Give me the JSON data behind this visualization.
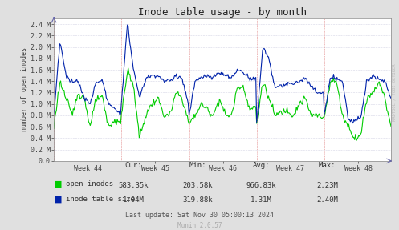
{
  "title": "Inode table usage - by month",
  "ylabel": "number of open inodes",
  "bg_color": "#e0e0e0",
  "plot_bg_color": "#ffffff",
  "week_labels": [
    "Week 44",
    "Week 45",
    "Week 46",
    "Week 47",
    "Week 48"
  ],
  "ytick_labels": [
    "0.0",
    "0.2 M",
    "0.4 M",
    "0.6 M",
    "0.8 M",
    "1.0 M",
    "1.2 M",
    "1.4 M",
    "1.6 M",
    "1.8 M",
    "2.0 M",
    "2.2 M",
    "2.4 M"
  ],
  "ytick_values": [
    0,
    200000,
    400000,
    600000,
    800000,
    1000000,
    1200000,
    1400000,
    1600000,
    1800000,
    2000000,
    2200000,
    2400000
  ],
  "green_color": "#00cc00",
  "blue_color": "#0022aa",
  "legend_entries": [
    "open inodes",
    "inode table size"
  ],
  "stats_header": [
    "Cur:",
    "Min:",
    "Avg:",
    "Max:"
  ],
  "stats_green": [
    "583.35k",
    "203.58k",
    "966.83k",
    "2.23M"
  ],
  "stats_blue": [
    "1.04M",
    "319.88k",
    "1.31M",
    "2.40M"
  ],
  "last_update": "Last update: Sat Nov 30 05:00:13 2024",
  "munin_version": "Munin 2.0.57",
  "rrdtool_text": "RRDTOOL / TOBI OETIKER",
  "ylim_max": 2500000,
  "n_points": 400
}
